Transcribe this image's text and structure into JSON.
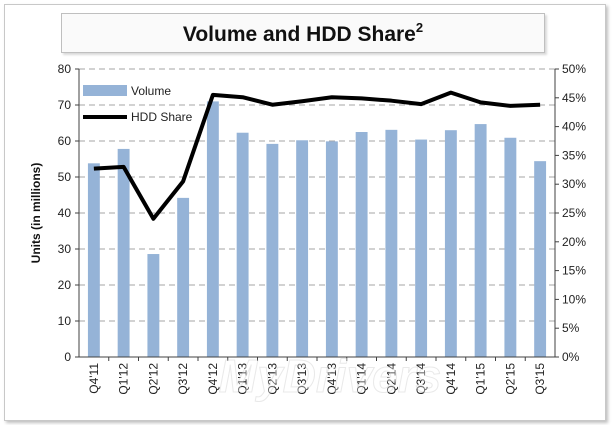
{
  "chart_data": {
    "type": "bar",
    "title": "Volume and HDD Share",
    "title_superscript": "2",
    "categories": [
      "Q4'11",
      "Q1'12",
      "Q2'12",
      "Q3'12",
      "Q4'12",
      "Q1'13",
      "Q2'13",
      "Q3'13",
      "Q4'13",
      "Q1'14",
      "Q2'14",
      "Q3'14",
      "Q4'14",
      "Q1'15",
      "Q2'15",
      "Q3'15"
    ],
    "series": [
      {
        "name": "Volume",
        "type": "bar",
        "axis": "left",
        "color": "#95b3d7",
        "values": [
          53.8,
          57.8,
          28.6,
          44.2,
          71.0,
          62.3,
          59.2,
          60.2,
          59.9,
          62.5,
          63.1,
          60.4,
          63.0,
          64.7,
          60.9,
          54.4
        ]
      },
      {
        "name": "HDD Share",
        "type": "line",
        "axis": "right",
        "color": "#000000",
        "values": [
          32.7,
          33.0,
          24.0,
          30.5,
          45.5,
          45.1,
          43.8,
          44.4,
          45.1,
          44.9,
          44.5,
          43.9,
          45.9,
          44.2,
          43.6,
          43.8
        ]
      }
    ],
    "ylabel": "Units (in millions)",
    "ylim": [
      0,
      80
    ],
    "yticks": [
      "0",
      "10",
      "20",
      "30",
      "40",
      "50",
      "60",
      "70",
      "80"
    ],
    "y2lim": [
      0,
      50
    ],
    "y2ticks": [
      "0%",
      "5%",
      "10%",
      "15%",
      "20%",
      "25%",
      "30%",
      "35%",
      "40%",
      "45%",
      "50%"
    ],
    "grid": true,
    "legend": "top-left",
    "watermark": "MyDrivers"
  }
}
